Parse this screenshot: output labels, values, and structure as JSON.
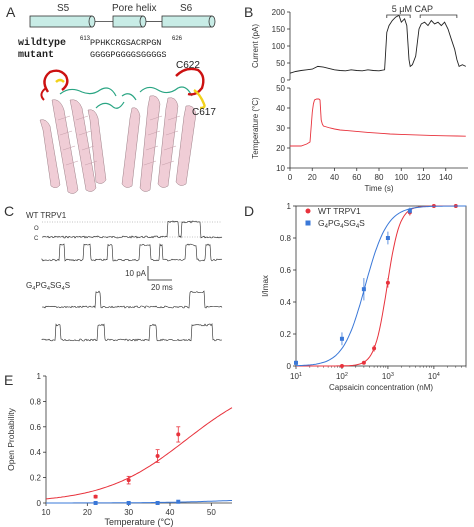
{
  "panel_letters": [
    "A",
    "B",
    "C",
    "D",
    "E"
  ],
  "panel_a": {
    "segment_s5": "S5",
    "segment_pore": "Pore helix",
    "segment_s6": "S6",
    "wildtype_label": "wildtype",
    "mutant_label": "mutant",
    "wt_start": "613",
    "wt_seq": "PPHKCRGSACRPGN",
    "wt_end": "626",
    "mutant_seq": "GGGGPGGGGSGGGGS",
    "cys_a": "C622",
    "cys_b": "C617"
  },
  "panel_c": {
    "wt_label": "WT TRPV1",
    "open_mark": "O",
    "closed_mark": "C",
    "scale_current": "10 pA",
    "scale_time": "20 ms",
    "mut_label_parts": [
      "G",
      "4",
      "PG",
      "4",
      "SG",
      "4",
      "S"
    ]
  },
  "legend_d": {
    "wt": "WT TRPV1",
    "mut_parts": [
      "G",
      "4",
      "PG",
      "4",
      "SG",
      "4",
      "S"
    ]
  },
  "colors": {
    "wt": "#e8323c",
    "mutant": "#3a78d8",
    "helix": "#f0cdd6",
    "loop_red": "#cc1111",
    "loop_yellow": "#f2d21a",
    "loop_green": "#2aa583",
    "cylinder": "#c8ece6"
  },
  "chart_data": [
    {
      "panel": "B",
      "type": "line",
      "xlabel": "Time (s)",
      "xlim": [
        0,
        160
      ],
      "xticks": [
        0,
        20,
        40,
        60,
        80,
        100,
        120,
        140
      ],
      "annotation": "5 μM CAP",
      "cap_intervals": [
        [
          87,
          108
        ],
        [
          117,
          150
        ]
      ],
      "top": {
        "ylabel": "Current (pA)",
        "ylim": [
          0,
          200
        ],
        "yticks": [
          0,
          50,
          100,
          150,
          200
        ],
        "x": [
          0,
          5,
          10,
          15,
          20,
          25,
          30,
          35,
          40,
          45,
          50,
          55,
          60,
          65,
          70,
          75,
          80,
          85,
          87,
          89,
          92,
          95,
          98,
          100,
          103,
          105,
          107,
          108,
          110,
          113,
          116,
          118,
          121,
          124,
          127,
          130,
          133,
          136,
          139,
          142,
          145,
          148,
          150,
          152,
          155,
          158
        ],
        "y": [
          20,
          25,
          28,
          30,
          32,
          40,
          38,
          34,
          30,
          28,
          27,
          30,
          28,
          27,
          30,
          28,
          27,
          30,
          140,
          160,
          175,
          185,
          190,
          170,
          180,
          160,
          60,
          40,
          45,
          70,
          150,
          165,
          170,
          160,
          175,
          165,
          170,
          160,
          170,
          150,
          120,
          90,
          60,
          40,
          45,
          40
        ]
      },
      "bottom": {
        "ylabel": "Temperature (°C)",
        "ylim": [
          10,
          50
        ],
        "yticks": [
          10,
          20,
          30,
          40,
          50
        ],
        "x": [
          0,
          5,
          10,
          15,
          18,
          20,
          21,
          22,
          24,
          26,
          27,
          28,
          29,
          30,
          33,
          36,
          40,
          45,
          50,
          60,
          70,
          80,
          90,
          100,
          110,
          120,
          130,
          140,
          150,
          158
        ],
        "y": [
          21,
          21,
          21,
          22,
          23,
          38,
          42,
          44,
          44.5,
          44.5,
          44,
          34,
          32,
          31,
          30.5,
          30,
          29.5,
          29,
          28.8,
          28.3,
          27.8,
          27.4,
          27,
          26.8,
          26.6,
          26.4,
          26.2,
          26.1,
          26,
          25.9
        ]
      }
    },
    {
      "panel": "D",
      "type": "scatter",
      "xlabel": "Capsaicin concentration (nM)",
      "ylabel": "I/Imax",
      "xscale": "log",
      "xlim": [
        10,
        50000
      ],
      "ylim": [
        0,
        1
      ],
      "yticks": [
        0,
        0.2,
        0.4,
        0.6,
        0.8,
        1
      ],
      "xtick_labels": [
        "10",
        "10",
        "10",
        "10",
        "10"
      ],
      "xtick_exponents": [
        "1",
        "2",
        "3",
        "4",
        ""
      ],
      "series": [
        {
          "name": "WT TRPV1",
          "x": [
            100,
            300,
            500,
            1000,
            3000,
            10000,
            30000
          ],
          "y": [
            0.0,
            0.02,
            0.11,
            0.52,
            0.96,
            1.0,
            1.0
          ],
          "err": [
            0.005,
            0.01,
            0.02,
            0.03,
            0.02,
            0.0,
            0.0
          ],
          "fit": {
            "ec50": 960,
            "n": 3.2
          }
        },
        {
          "name": "G4PG4SG4S",
          "x": [
            10,
            100,
            300,
            1000,
            3000
          ],
          "y": [
            0.02,
            0.17,
            0.48,
            0.8,
            0.97
          ],
          "err": [
            0.01,
            0.04,
            0.07,
            0.04,
            0.02
          ],
          "fit": {
            "ec50": 320,
            "n": 1.8
          }
        }
      ]
    },
    {
      "panel": "E",
      "type": "scatter",
      "xlabel": "Temperature (°C)",
      "ylabel": "Open Probability",
      "xlim": [
        10,
        55
      ],
      "xticks": [
        10,
        20,
        30,
        40,
        50
      ],
      "ylim": [
        0,
        1
      ],
      "yticks": [
        0,
        0.2,
        0.4,
        0.6,
        0.8,
        1
      ],
      "series": [
        {
          "name": "WT TRPV1",
          "x": [
            22,
            30,
            37,
            42
          ],
          "y": [
            0.05,
            0.18,
            0.37,
            0.54
          ],
          "err": [
            0.01,
            0.03,
            0.05,
            0.06
          ],
          "fit": {
            "k": 0.1,
            "t50": 44
          }
        },
        {
          "name": "G4PG4SG4S",
          "x": [
            22,
            30,
            37,
            42
          ],
          "y": [
            0.0,
            0.0,
            0.0,
            0.01
          ],
          "err": [
            0,
            0,
            0,
            0
          ],
          "fit": {
            "max": 0.04,
            "k": 0.12,
            "t50": 55
          }
        }
      ]
    }
  ]
}
